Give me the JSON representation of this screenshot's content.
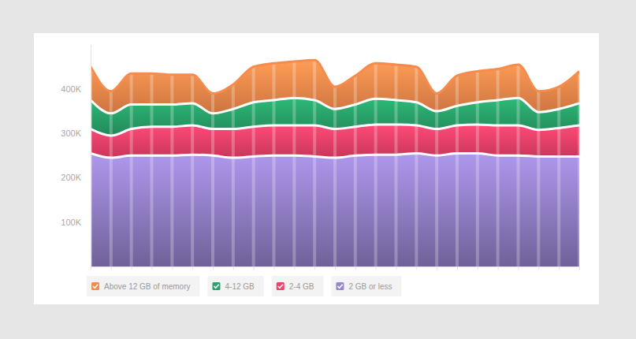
{
  "chart_data": {
    "type": "area",
    "stacked": true,
    "tick_labels": "y",
    "legend": "bottom",
    "categories": [
      null,
      null,
      null,
      null,
      null,
      null,
      null,
      null,
      null,
      null,
      null,
      null,
      null,
      null,
      null,
      null,
      null,
      null,
      null,
      null,
      null,
      null,
      null,
      null,
      null
    ],
    "ylim": [
      0,
      500000
    ],
    "yticks": [
      {
        "value": 100000,
        "label": "100K"
      },
      {
        "value": 200000,
        "label": "200K"
      },
      {
        "value": 300000,
        "label": "300K"
      },
      {
        "value": 400000,
        "label": "400K"
      }
    ],
    "series": [
      {
        "name": "Above 12 GB of memory",
        "color": "#f58b4c",
        "values": [
          75000,
          50000,
          70000,
          70000,
          67000,
          64000,
          45000,
          55000,
          80000,
          83000,
          82000,
          90000,
          50000,
          65000,
          80000,
          80000,
          80000,
          40000,
          68000,
          70000,
          70000,
          75000,
          47000,
          50000,
          72000
        ]
      },
      {
        "name": "4-12 GB",
        "color": "#29a36a",
        "values": [
          65000,
          50000,
          55000,
          50000,
          50000,
          50000,
          35000,
          45000,
          55000,
          57000,
          62000,
          57000,
          45000,
          50000,
          58000,
          55000,
          52000,
          40000,
          44000,
          50000,
          57000,
          62000,
          40000,
          43000,
          50000
        ]
      },
      {
        "name": "2-4 GB",
        "color": "#f0416a",
        "values": [
          55000,
          50000,
          60000,
          65000,
          65000,
          66000,
          60000,
          65000,
          67000,
          68000,
          68000,
          70000,
          65000,
          65000,
          68000,
          68000,
          63000,
          60000,
          63000,
          65000,
          68000,
          68000,
          60000,
          64000,
          70000
        ]
      },
      {
        "name": "2 GB or less",
        "color": "#9a86d1",
        "values": [
          255000,
          245000,
          250000,
          250000,
          250000,
          252000,
          250000,
          245000,
          248000,
          250000,
          250000,
          248000,
          245000,
          250000,
          252000,
          252000,
          255000,
          250000,
          255000,
          255000,
          250000,
          250000,
          248000,
          248000,
          248000
        ]
      }
    ]
  }
}
